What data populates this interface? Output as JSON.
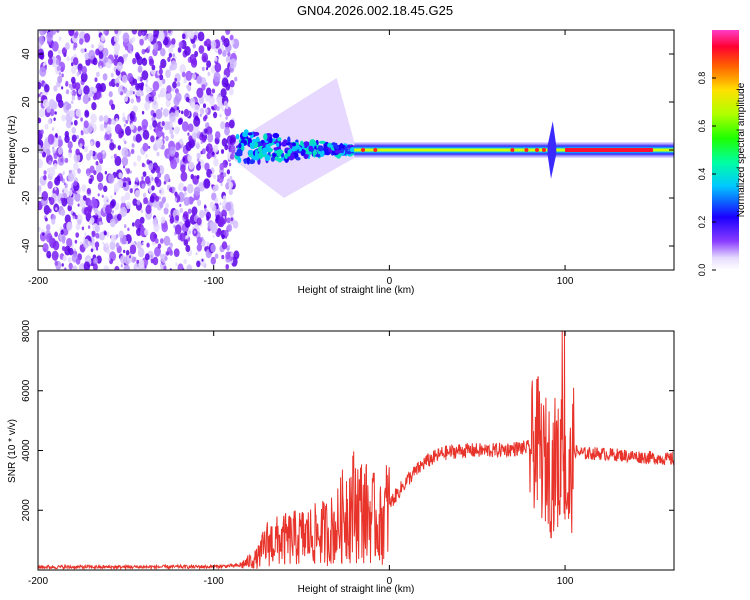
{
  "title": "GN04.2026.002.18.45.G25",
  "chart_data": [
    {
      "type": "heatmap",
      "title": "GN04.2026.002.18.45.G25",
      "xlabel": "Height of straight line (km)",
      "ylabel": "Frequency (Hz)",
      "xlim": [
        -200,
        162
      ],
      "ylim": [
        -50,
        50
      ],
      "xticks": [
        -200,
        -100,
        0,
        100
      ],
      "yticks": [
        -40,
        -20,
        0,
        20,
        40
      ],
      "colorbar": {
        "label": "Normalized spectral amplitude",
        "range": [
          0,
          1
        ],
        "ticks": [
          "0.0",
          "0.2",
          "0.4",
          "0.6",
          "0.8"
        ]
      },
      "regions": [
        {
          "name": "noise",
          "x": [
            -200,
            -87
          ],
          "freq": [
            -50,
            50
          ],
          "amplitude": 0.05
        },
        {
          "name": "track-onset",
          "x": [
            -87,
            -20
          ],
          "freq_spread": [
            30,
            5
          ],
          "amplitude": 0.25
        },
        {
          "name": "steady-track",
          "x": [
            -20,
            162
          ],
          "freq": 0,
          "amplitude": 0.45
        },
        {
          "name": "bright-segment",
          "x": [
            100,
            150
          ],
          "freq": 0,
          "amplitude": 0.95
        }
      ]
    },
    {
      "type": "line",
      "xlabel": "Height of straight line (km)",
      "ylabel": "SNR (10 * v/v)",
      "xlim": [
        -200,
        162
      ],
      "ylim": [
        0,
        8000
      ],
      "xticks": [
        -200,
        -100,
        0,
        100
      ],
      "yticks": [
        2000,
        4000,
        6000,
        8000
      ],
      "color": "#e8332a",
      "series": [
        {
          "name": "SNR",
          "x": [
            -200,
            -150,
            -100,
            -85,
            -75,
            -70,
            -60,
            -50,
            -40,
            -30,
            -25,
            -20,
            -15,
            -10,
            -5,
            0,
            10,
            20,
            30,
            40,
            60,
            70,
            80,
            85,
            88,
            90,
            92,
            95,
            97,
            98,
            100,
            102,
            105,
            110,
            120,
            140,
            162
          ],
          "y": [
            100,
            100,
            110,
            150,
            400,
            900,
            1000,
            1100,
            1200,
            1400,
            2000,
            2200,
            2000,
            1800,
            1500,
            2200,
            3000,
            3600,
            3900,
            4000,
            4000,
            4050,
            4100,
            4300,
            3500,
            3800,
            3200,
            3800,
            3000,
            4500,
            3000,
            2500,
            4000,
            3900,
            3900,
            3800,
            3700
          ]
        }
      ]
    }
  ]
}
